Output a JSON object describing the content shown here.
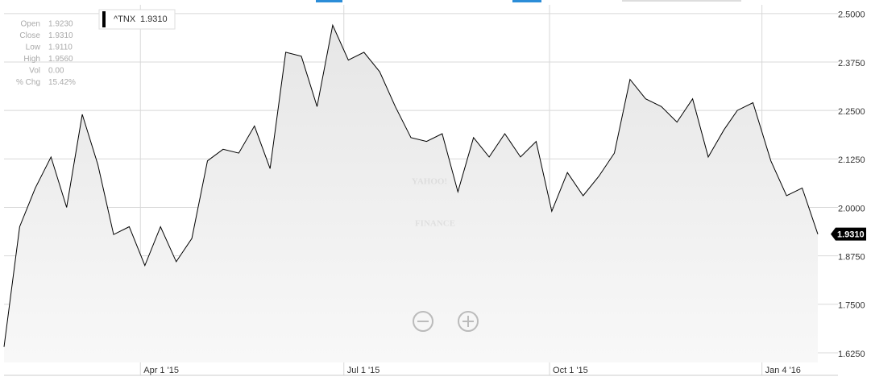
{
  "chart_data": {
    "type": "line",
    "x": [
      "2015-01-30",
      "2015-02-06",
      "2015-02-13",
      "2015-02-20",
      "2015-02-27",
      "2015-03-06",
      "2015-03-13",
      "2015-03-20",
      "2015-03-27",
      "2015-04-03",
      "2015-04-10",
      "2015-04-17",
      "2015-04-24",
      "2015-05-01",
      "2015-05-08",
      "2015-05-15",
      "2015-05-22",
      "2015-05-29",
      "2015-06-05",
      "2015-06-12",
      "2015-06-19",
      "2015-06-26",
      "2015-07-03",
      "2015-07-10",
      "2015-07-17",
      "2015-07-24",
      "2015-07-31",
      "2015-08-07",
      "2015-08-14",
      "2015-08-21",
      "2015-08-28",
      "2015-09-04",
      "2015-09-11",
      "2015-09-18",
      "2015-09-25",
      "2015-10-02",
      "2015-10-09",
      "2015-10-16",
      "2015-10-23",
      "2015-10-30",
      "2015-11-06",
      "2015-11-13",
      "2015-11-20",
      "2015-11-27",
      "2015-12-04",
      "2015-12-11",
      "2015-12-18",
      "2015-12-24",
      "2015-12-31",
      "2016-01-08",
      "2016-01-15",
      "2016-01-22",
      "2016-01-29"
    ],
    "series": [
      {
        "name": "^TNX",
        "color": "#000000",
        "values": [
          1.64,
          1.95,
          2.05,
          2.13,
          2.0,
          2.24,
          2.11,
          1.93,
          1.95,
          1.85,
          1.95,
          1.86,
          1.92,
          2.12,
          2.15,
          2.14,
          2.21,
          2.1,
          2.4,
          2.39,
          2.26,
          2.47,
          2.38,
          2.4,
          2.35,
          2.26,
          2.18,
          2.17,
          2.19,
          2.04,
          2.18,
          2.13,
          2.19,
          2.13,
          2.17,
          1.99,
          2.09,
          2.03,
          2.08,
          2.14,
          2.33,
          2.28,
          2.26,
          2.22,
          2.28,
          2.13,
          2.2,
          2.25,
          2.27,
          2.12,
          2.03,
          2.05,
          1.931
        ]
      }
    ],
    "last_label": "1.9310",
    "xlim": [
      "2015-01-30",
      "2016-01-29"
    ],
    "xticks": [
      {
        "value": "2015-04-01",
        "label": "Apr 1 '15"
      },
      {
        "value": "2015-07-01",
        "label": "Jul 1 '15"
      },
      {
        "value": "2015-10-01",
        "label": "Oct 1 '15"
      },
      {
        "value": "2016-01-04",
        "label": "Jan 4 '16"
      }
    ],
    "ylim": [
      1.6,
      2.51
    ],
    "yticks": [
      {
        "value": 1.625,
        "label": "1.6250"
      },
      {
        "value": 1.75,
        "label": "1.7500"
      },
      {
        "value": 1.875,
        "label": "1.8750"
      },
      {
        "value": 2.0,
        "label": "2.0000"
      },
      {
        "value": 2.125,
        "label": "2.1250"
      },
      {
        "value": 2.25,
        "label": "2.2500"
      },
      {
        "value": 2.375,
        "label": "2.3750"
      },
      {
        "value": 2.5,
        "label": "2.5000"
      }
    ],
    "grid": true,
    "panel": [
      {
        "label": "Open",
        "value": "1.9230"
      },
      {
        "label": "Close",
        "value": "1.9310"
      },
      {
        "label": "Low",
        "value": "1.9110"
      },
      {
        "label": "High",
        "value": "1.9560"
      },
      {
        "label": "Vol",
        "value": "0.00"
      },
      {
        "label": "% Chg",
        "value": "15.42%"
      }
    ],
    "watermark": [
      "YAHOO!",
      "FINANCE"
    ]
  }
}
